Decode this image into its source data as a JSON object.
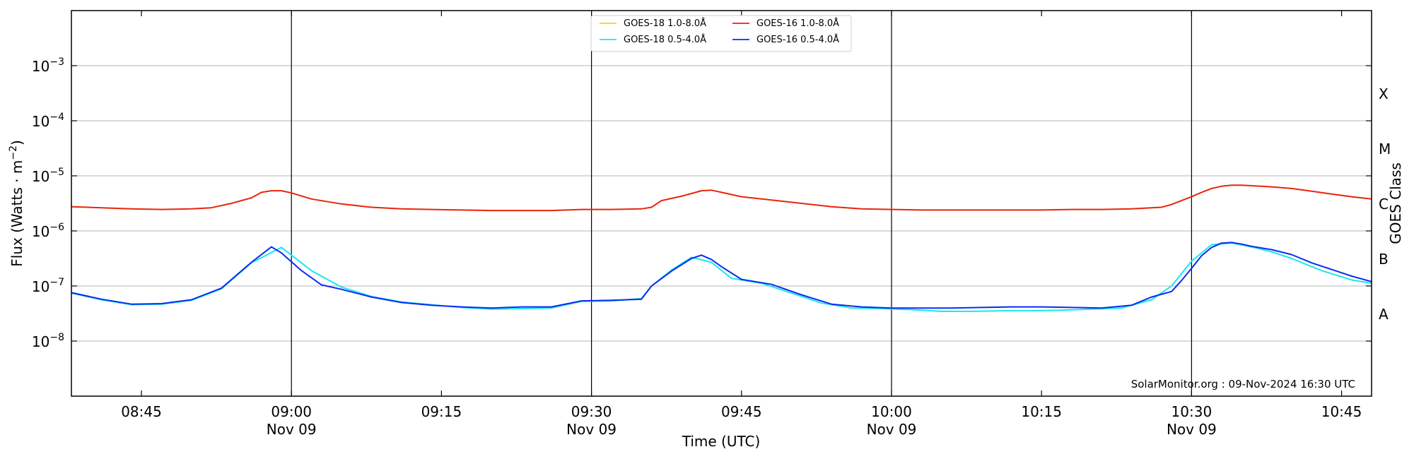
{
  "chart_data": {
    "type": "line",
    "xlabel": "Time (UTC)",
    "ylabel": "Flux (Watts · m",
    "ylabel_exp": "−2",
    "ylabel_close": ")",
    "right_axis_label": "GOES Class",
    "annotation": "SolarMonitor.org : 09-Nov-2024 16:30 UTC",
    "y_scale": "log",
    "ylim_exp": [
      -9,
      -2
    ],
    "xlim_min": [
      518,
      648
    ],
    "y_ticks": [
      {
        "exp": -8,
        "label": "10",
        "sup": "−8"
      },
      {
        "exp": -7,
        "label": "10",
        "sup": "−7"
      },
      {
        "exp": -6,
        "label": "10",
        "sup": "−6"
      },
      {
        "exp": -5,
        "label": "10",
        "sup": "−5"
      },
      {
        "exp": -4,
        "label": "10",
        "sup": "−4"
      },
      {
        "exp": -3,
        "label": "10",
        "sup": "−3"
      }
    ],
    "x_ticks": [
      {
        "min": 525,
        "label": "08:45",
        "sub": ""
      },
      {
        "min": 540,
        "label": "09:00",
        "sub": "Nov 09"
      },
      {
        "min": 555,
        "label": "09:15",
        "sub": ""
      },
      {
        "min": 570,
        "label": "09:30",
        "sub": "Nov 09"
      },
      {
        "min": 585,
        "label": "09:45",
        "sub": ""
      },
      {
        "min": 600,
        "label": "10:00",
        "sub": "Nov 09"
      },
      {
        "min": 615,
        "label": "10:15",
        "sub": ""
      },
      {
        "min": 630,
        "label": "10:30",
        "sub": "Nov 09"
      },
      {
        "min": 645,
        "label": "10:45",
        "sub": ""
      }
    ],
    "vlines_min": [
      540,
      570,
      600,
      630
    ],
    "goes_classes": [
      {
        "label": "X",
        "exp": -3.5
      },
      {
        "label": "M",
        "exp": -4.5
      },
      {
        "label": "C",
        "exp": -5.5
      },
      {
        "label": "B",
        "exp": -6.5
      },
      {
        "label": "A",
        "exp": -7.5
      }
    ],
    "grid": true,
    "legend_position": "top-center",
    "series": [
      {
        "name": "GOES-18 1.0-8.0Å",
        "color": "#f5d800",
        "x_min": [],
        "y_exp": []
      },
      {
        "name": "GOES-18 0.5-4.0Å",
        "color": "#19e6f0",
        "x_min": [
          518,
          521,
          524,
          527,
          530,
          533,
          536,
          539,
          542,
          545,
          548,
          551,
          554,
          557,
          560,
          563,
          566,
          569,
          572,
          575,
          576,
          578,
          580,
          582,
          584,
          587,
          590,
          593,
          596,
          599,
          602,
          605,
          608,
          611,
          614,
          617,
          620,
          623,
          626,
          628,
          630,
          632,
          634,
          636,
          638,
          640,
          643,
          646,
          648
        ],
        "y_exp": [
          -7.13,
          -7.25,
          -7.34,
          -7.33,
          -7.26,
          -7.05,
          -6.58,
          -6.3,
          -6.72,
          -7.02,
          -7.19,
          -7.29,
          -7.34,
          -7.39,
          -7.42,
          -7.41,
          -7.4,
          -7.28,
          -7.27,
          -7.23,
          -7.0,
          -6.71,
          -6.48,
          -6.57,
          -6.86,
          -6.95,
          -7.13,
          -7.31,
          -7.4,
          -7.41,
          -7.43,
          -7.46,
          -7.46,
          -7.45,
          -7.45,
          -7.44,
          -7.42,
          -7.4,
          -7.25,
          -7.0,
          -6.55,
          -6.25,
          -6.22,
          -6.29,
          -6.38,
          -6.5,
          -6.72,
          -6.89,
          -6.95
        ]
      },
      {
        "name": "GOES-16 1.0-8.0Å",
        "color": "#e8250a",
        "x_min": [
          518,
          521,
          524,
          527,
          530,
          532,
          534,
          536,
          537,
          538,
          539,
          540,
          542,
          545,
          548,
          551,
          554,
          557,
          560,
          563,
          566,
          569,
          572,
          575,
          576,
          577,
          579,
          580,
          581,
          582,
          583,
          585,
          588,
          591,
          594,
          597,
          600,
          603,
          606,
          609,
          612,
          615,
          618,
          621,
          624,
          627,
          628,
          629,
          630,
          631,
          632,
          633,
          634,
          635,
          636,
          637,
          638,
          640,
          642,
          644,
          646,
          648
        ],
        "y_exp": [
          -5.56,
          -5.58,
          -5.6,
          -5.61,
          -5.6,
          -5.58,
          -5.5,
          -5.4,
          -5.3,
          -5.27,
          -5.27,
          -5.31,
          -5.42,
          -5.51,
          -5.57,
          -5.6,
          -5.61,
          -5.62,
          -5.63,
          -5.63,
          -5.63,
          -5.61,
          -5.61,
          -5.6,
          -5.57,
          -5.45,
          -5.37,
          -5.32,
          -5.27,
          -5.26,
          -5.3,
          -5.38,
          -5.44,
          -5.5,
          -5.56,
          -5.6,
          -5.61,
          -5.62,
          -5.62,
          -5.62,
          -5.62,
          -5.62,
          -5.61,
          -5.61,
          -5.6,
          -5.57,
          -5.52,
          -5.45,
          -5.38,
          -5.3,
          -5.23,
          -5.19,
          -5.17,
          -5.17,
          -5.18,
          -5.19,
          -5.2,
          -5.23,
          -5.28,
          -5.33,
          -5.38,
          -5.42
        ]
      },
      {
        "name": "GOES-16 0.5-4.0Å",
        "color": "#0a2cf0",
        "x_min": [
          518,
          521,
          524,
          527,
          530,
          533,
          536,
          538,
          539,
          541,
          543,
          545,
          548,
          551,
          554,
          557,
          560,
          563,
          566,
          569,
          572,
          575,
          576,
          578,
          580,
          581,
          582,
          583,
          585,
          588,
          591,
          594,
          597,
          600,
          603,
          606,
          609,
          612,
          615,
          618,
          621,
          624,
          626,
          628,
          629,
          630,
          631,
          632,
          633,
          634,
          635,
          636,
          638,
          640,
          642,
          644,
          646,
          648
        ],
        "y_exp": [
          -7.12,
          -7.24,
          -7.33,
          -7.32,
          -7.25,
          -7.04,
          -6.57,
          -6.29,
          -6.4,
          -6.72,
          -6.98,
          -7.06,
          -7.2,
          -7.3,
          -7.35,
          -7.38,
          -7.4,
          -7.38,
          -7.38,
          -7.27,
          -7.26,
          -7.24,
          -7.0,
          -6.73,
          -6.5,
          -6.44,
          -6.52,
          -6.65,
          -6.88,
          -6.97,
          -7.16,
          -7.33,
          -7.38,
          -7.4,
          -7.4,
          -7.4,
          -7.39,
          -7.38,
          -7.38,
          -7.39,
          -7.4,
          -7.35,
          -7.2,
          -7.1,
          -6.9,
          -6.68,
          -6.45,
          -6.3,
          -6.22,
          -6.21,
          -6.24,
          -6.28,
          -6.34,
          -6.43,
          -6.58,
          -6.7,
          -6.82,
          -6.92
        ]
      }
    ],
    "legend_layout": [
      {
        "series": 0
      },
      {
        "series": 1
      },
      {
        "series": 2
      },
      {
        "series": 3
      }
    ]
  }
}
